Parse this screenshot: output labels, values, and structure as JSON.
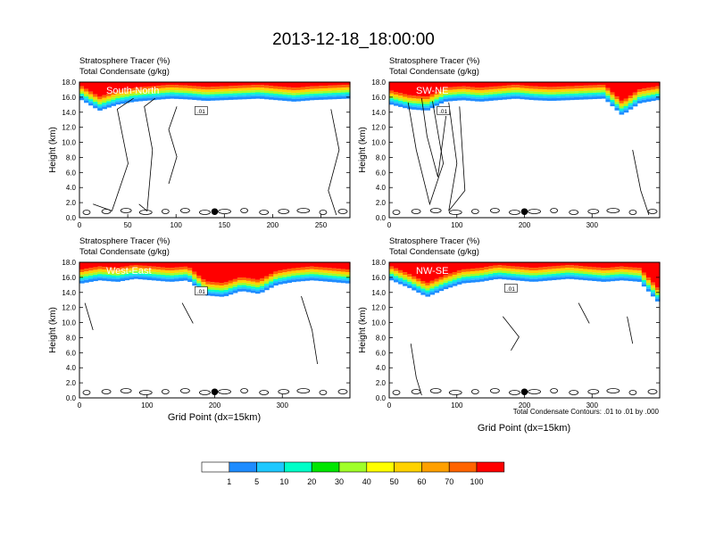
{
  "title": "2013-12-18_18:00:00",
  "panel_label_top": "Stratosphere Tracer   (%)",
  "panel_label_bottom": "Total Condensate   (g/kg)",
  "ylabel": "Height (km)",
  "xlabel": "Grid Point (dx=15km)",
  "contour_note": "Total Condensate Contours: .01 to .01 by .000",
  "contour_tag": ".01",
  "colors": {
    "bins": [
      "#ffffff",
      "#1e8cff",
      "#1ec8ff",
      "#00ffc8",
      "#00e600",
      "#a0ff28",
      "#ffff00",
      "#ffd200",
      "#ffa000",
      "#ff6400",
      "#ff0000"
    ],
    "contour": "#000000",
    "marker": "#000000"
  },
  "colorbar": {
    "labels": [
      "1",
      "5",
      "10",
      "20",
      "30",
      "40",
      "50",
      "60",
      "70",
      "100"
    ]
  },
  "chart_data": [
    {
      "type": "heatmap",
      "inset_label": "South-North",
      "xlim": [
        0,
        280
      ],
      "ylim": [
        0,
        18
      ],
      "xticks": [
        "0",
        "50",
        "100",
        "150",
        "200",
        "250"
      ],
      "xtick_values": [
        0,
        50,
        100,
        150,
        200,
        250
      ],
      "yticks": [
        "0.0",
        "2.0",
        "4.0",
        "6.0",
        "8.0",
        "10.0",
        "12.0",
        "14.0",
        "16.0",
        "18.0"
      ],
      "tracer_base_km": [
        15.6,
        14.2,
        15.0,
        15.4,
        15.6,
        15.8,
        15.7,
        15.5,
        15.6,
        15.7,
        15.8,
        15.6,
        15.4,
        15.6,
        15.7,
        15.8
      ],
      "marker_x": 140
    },
    {
      "type": "heatmap",
      "inset_label": "SW-NE",
      "xlim": [
        0,
        400
      ],
      "ylim": [
        0,
        18
      ],
      "xticks": [
        "0",
        "100",
        "200",
        "300"
      ],
      "xtick_values": [
        0,
        100,
        200,
        300
      ],
      "yticks": [
        "0.0",
        "2.0",
        "4.0",
        "6.0",
        "8.0",
        "10.0",
        "12.0",
        "14.0",
        "16.0",
        "18.0"
      ],
      "tracer_base_km": [
        15.0,
        14.4,
        14.2,
        15.4,
        15.6,
        15.4,
        15.6,
        15.8,
        15.6,
        15.5,
        15.6,
        15.7,
        15.8,
        13.6,
        15.2,
        15.6
      ],
      "marker_x": 200
    },
    {
      "type": "heatmap",
      "inset_label": "West-East",
      "xlim": [
        0,
        400
      ],
      "ylim": [
        0,
        18
      ],
      "xticks": [
        "0",
        "100",
        "200",
        "300"
      ],
      "xtick_values": [
        0,
        100,
        200,
        300
      ],
      "yticks": [
        "0.0",
        "2.0",
        "4.0",
        "6.0",
        "8.0",
        "10.0",
        "12.0",
        "14.0",
        "16.0",
        "18.0"
      ],
      "tracer_base_km": [
        15.2,
        15.6,
        15.4,
        15.8,
        15.6,
        15.4,
        15.6,
        13.6,
        13.4,
        14.2,
        13.8,
        15.0,
        15.4,
        15.6,
        15.4,
        15.2
      ],
      "marker_x": 200
    },
    {
      "type": "heatmap",
      "inset_label": "NW-SE",
      "xlim": [
        0,
        400
      ],
      "ylim": [
        0,
        18
      ],
      "xticks": [
        "0",
        "100",
        "200",
        "300"
      ],
      "xtick_values": [
        0,
        100,
        200,
        300
      ],
      "yticks": [
        "0.0",
        "2.0",
        "4.0",
        "6.0",
        "8.0",
        "10.0",
        "12.0",
        "14.0",
        "16.0",
        "18.0"
      ],
      "tracer_base_km": [
        15.6,
        14.6,
        13.4,
        14.4,
        15.2,
        15.4,
        15.8,
        15.6,
        15.4,
        15.6,
        15.8,
        15.6,
        15.4,
        15.6,
        15.4,
        12.8
      ],
      "marker_x": 200
    }
  ]
}
